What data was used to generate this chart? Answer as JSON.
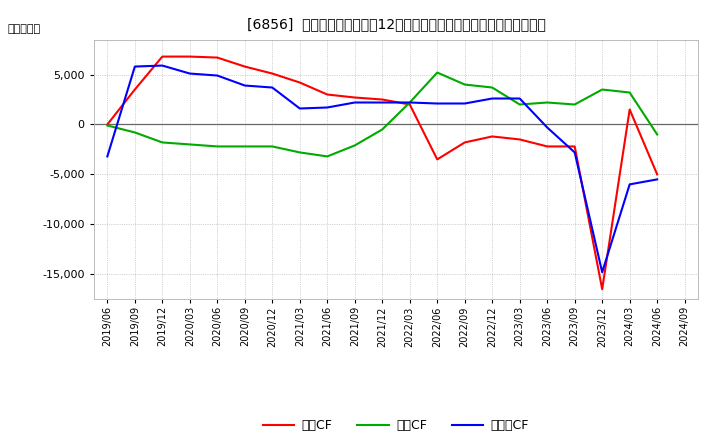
{
  "title": "[6856]  キャッシュフローの12か月移動合計の対前年同期増減額の推移",
  "ylabel": "（百万円）",
  "x_labels": [
    "2019/06",
    "2019/09",
    "2019/12",
    "2020/03",
    "2020/06",
    "2020/09",
    "2020/12",
    "2021/03",
    "2021/06",
    "2021/09",
    "2021/12",
    "2022/03",
    "2022/06",
    "2022/09",
    "2022/12",
    "2023/03",
    "2023/06",
    "2023/09",
    "2023/12",
    "2024/03",
    "2024/06",
    "2024/09"
  ],
  "eigyo_cf": [
    0,
    3500,
    6800,
    6800,
    6700,
    5800,
    5100,
    4200,
    3000,
    2700,
    2500,
    2000,
    -3500,
    -1800,
    -1200,
    -1500,
    -2200,
    -2200,
    -16500,
    1500,
    -5000,
    null
  ],
  "toshi_cf": [
    -100,
    -800,
    -1800,
    -2000,
    -2200,
    -2200,
    -2200,
    -2800,
    -3200,
    -2100,
    -500,
    2200,
    5200,
    4000,
    3700,
    2000,
    2200,
    2000,
    3500,
    3200,
    -1000,
    null
  ],
  "free_cf": [
    -3200,
    5800,
    5900,
    5100,
    4900,
    3900,
    3700,
    1600,
    1700,
    2200,
    2200,
    2200,
    2100,
    2100,
    2600,
    2600,
    -300,
    -2800,
    -14800,
    -6000,
    -5500,
    null
  ],
  "eigyo_color": "#ff0000",
  "toshi_color": "#00aa00",
  "free_color": "#0000ff",
  "background_color": "#ffffff",
  "grid_color": "#aaaaaa",
  "ylim_min": -17500,
  "ylim_max": 8500,
  "yticks": [
    -15000,
    -10000,
    -5000,
    0,
    5000
  ],
  "legend_labels": [
    "営業CF",
    "投資CF",
    "フリーCF"
  ]
}
